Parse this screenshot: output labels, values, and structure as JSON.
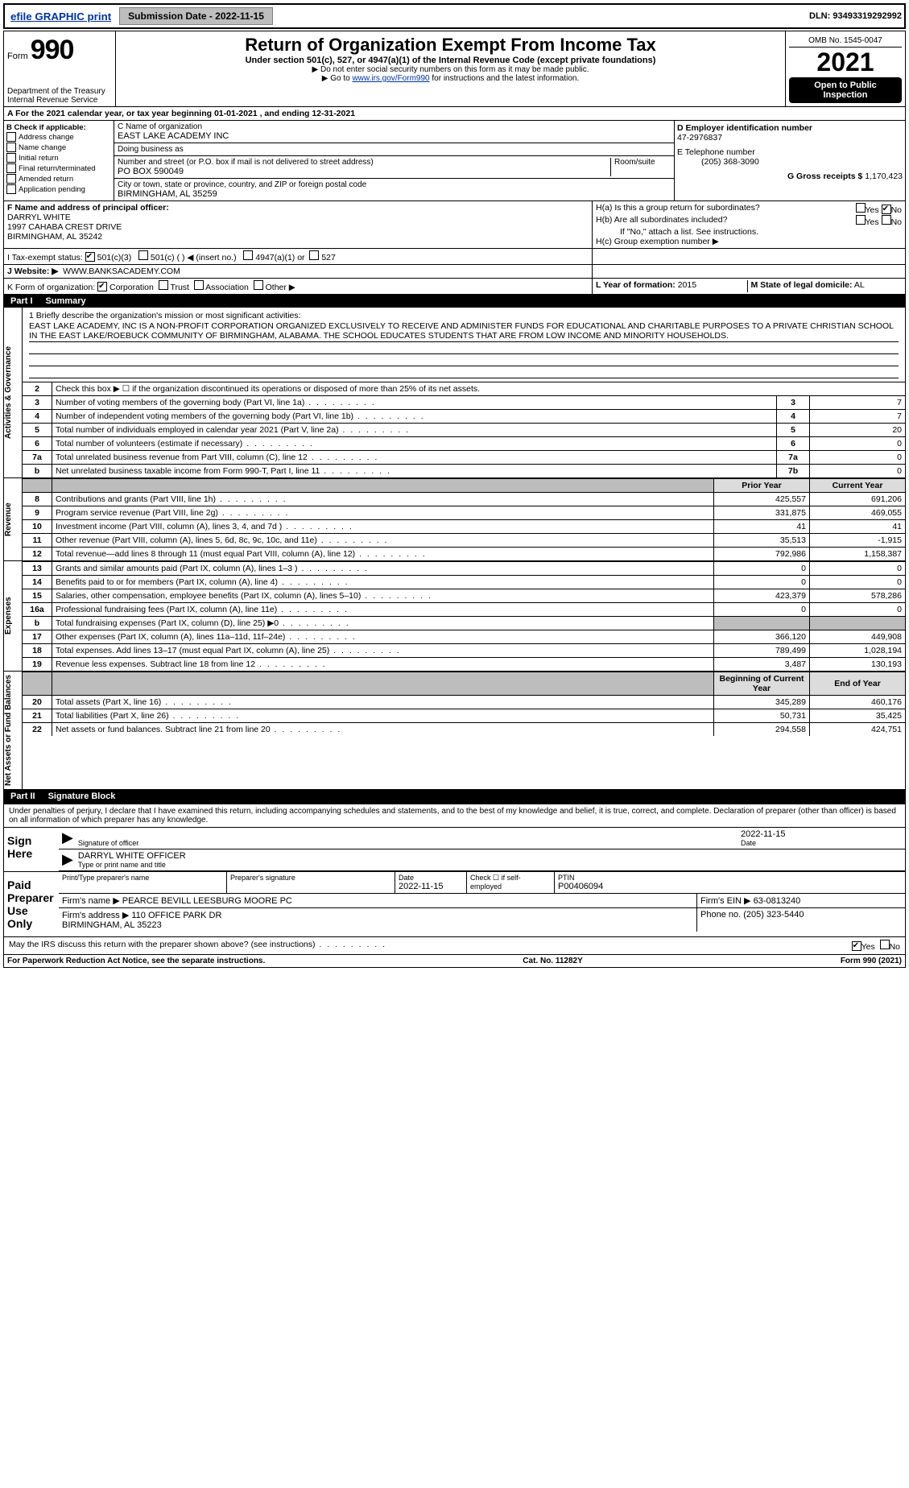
{
  "topbar": {
    "efile_label": "efile GRAPHIC print ",
    "submission_label": "Submission Date - 2022-11-15",
    "dln": "DLN: 93493319292992"
  },
  "header": {
    "form_label": "Form",
    "form_no": "990",
    "title": "Return of Organization Exempt From Income Tax",
    "subtitle": "Under section 501(c), 527, or 4947(a)(1) of the Internal Revenue Code (except private foundations)",
    "note1": "▶ Do not enter social security numbers on this form as it may be made public.",
    "note2_pre": "▶ Go to ",
    "note2_link": "www.irs.gov/Form990",
    "note2_post": " for instructions and the latest information.",
    "dept": "Department of the Treasury\nInternal Revenue Service",
    "omb": "OMB No. 1545-0047",
    "year": "2021",
    "badge": "Open to Public Inspection"
  },
  "a_row": "A For the 2021 calendar year, or tax year beginning 01-01-2021    , and ending 12-31-2021",
  "b": {
    "label": "B Check if applicable:",
    "opts": [
      "Address change",
      "Name change",
      "Initial return",
      "Final return/terminated",
      "Amended return",
      "Application pending"
    ]
  },
  "c": {
    "name_lbl": "C Name of organization",
    "name": "EAST LAKE ACADEMY INC",
    "dba_lbl": "Doing business as",
    "dba": "",
    "street_lbl": "Number and street (or P.O. box if mail is not delivered to street address)",
    "street": "PO BOX 590049",
    "room_lbl": "Room/suite",
    "city_lbl": "City or town, state or province, country, and ZIP or foreign postal code",
    "city": "BIRMINGHAM, AL  35259"
  },
  "d": {
    "lbl": "D Employer identification number",
    "val": "47-2976837"
  },
  "e": {
    "lbl": "E Telephone number",
    "val": "(205) 368-3090"
  },
  "g": {
    "lbl": "G Gross receipts $",
    "val": "1,170,423"
  },
  "f": {
    "lbl": "F  Name and address of principal officer:",
    "name": "DARRYL WHITE",
    "addr1": "1997 CAHABA CREST DRIVE",
    "addr2": "BIRMINGHAM, AL  35242"
  },
  "h": {
    "a": "H(a)  Is this a group return for subordinates?",
    "b": "H(b)  Are all subordinates included?",
    "note": "If \"No,\" attach a list. See instructions.",
    "c": "H(c)  Group exemption number ▶"
  },
  "i": {
    "lbl": "I    Tax-exempt status:",
    "opts": [
      "501(c)(3)",
      "501(c) (  ) ◀ (insert no.)",
      "4947(a)(1) or",
      "527"
    ]
  },
  "j": {
    "lbl": "J   Website: ▶",
    "val": "WWW.BANKSACADEMY.COM"
  },
  "k": {
    "lbl": "K Form of organization:",
    "opts": [
      "Corporation",
      "Trust",
      "Association",
      "Other ▶"
    ]
  },
  "l": {
    "lbl": "L Year of formation:",
    "val": "2015"
  },
  "m": {
    "lbl": "M State of legal domicile:",
    "val": "AL"
  },
  "part1_lbl": "Part I",
  "part1_title": "Summary",
  "mission": {
    "q": "1 Briefly describe the organization's mission or most significant activities:",
    "txt": "EAST LAKE ACADEMY, INC IS A NON-PROFIT CORPORATION ORGANIZED EXCLUSIVELY TO RECEIVE AND ADMINISTER FUNDS FOR EDUCATIONAL AND CHARITABLE PURPOSES TO A PRIVATE CHRISTIAN SCHOOL IN THE EAST LAKE/ROEBUCK COMMUNITY OF BIRMINGHAM, ALABAMA. THE SCHOOL EDUCATES STUDENTS THAT ARE FROM LOW INCOME AND MINORITY HOUSEHOLDS."
  },
  "gov_lines": [
    {
      "n": "2",
      "t": "Check this box ▶ ☐  if the organization discontinued its operations or disposed of more than 25% of its net assets."
    },
    {
      "n": "3",
      "t": "Number of voting members of the governing body (Part VI, line 1a)",
      "box": "3",
      "v": "7"
    },
    {
      "n": "4",
      "t": "Number of independent voting members of the governing body (Part VI, line 1b)",
      "box": "4",
      "v": "7"
    },
    {
      "n": "5",
      "t": "Total number of individuals employed in calendar year 2021 (Part V, line 2a)",
      "box": "5",
      "v": "20"
    },
    {
      "n": "6",
      "t": "Total number of volunteers (estimate if necessary)",
      "box": "6",
      "v": "0"
    },
    {
      "n": "7a",
      "t": "Total unrelated business revenue from Part VIII, column (C), line 12",
      "box": "7a",
      "v": "0"
    },
    {
      "n": "b",
      "t": "Net unrelated business taxable income from Form 990-T, Part I, line 11",
      "box": "7b",
      "v": "0"
    }
  ],
  "col_hdr": {
    "py": "Prior Year",
    "cy": "Current Year"
  },
  "rev_lines": [
    {
      "n": "8",
      "t": "Contributions and grants (Part VIII, line 1h)",
      "py": "425,557",
      "cy": "691,206"
    },
    {
      "n": "9",
      "t": "Program service revenue (Part VIII, line 2g)",
      "py": "331,875",
      "cy": "469,055"
    },
    {
      "n": "10",
      "t": "Investment income (Part VIII, column (A), lines 3, 4, and 7d )",
      "py": "41",
      "cy": "41"
    },
    {
      "n": "11",
      "t": "Other revenue (Part VIII, column (A), lines 5, 6d, 8c, 9c, 10c, and 11e)",
      "py": "35,513",
      "cy": "-1,915"
    },
    {
      "n": "12",
      "t": "Total revenue—add lines 8 through 11 (must equal Part VIII, column (A), line 12)",
      "py": "792,986",
      "cy": "1,158,387"
    }
  ],
  "exp_lines": [
    {
      "n": "13",
      "t": "Grants and similar amounts paid (Part IX, column (A), lines 1–3 )",
      "py": "0",
      "cy": "0"
    },
    {
      "n": "14",
      "t": "Benefits paid to or for members (Part IX, column (A), line 4)",
      "py": "0",
      "cy": "0"
    },
    {
      "n": "15",
      "t": "Salaries, other compensation, employee benefits (Part IX, column (A), lines 5–10)",
      "py": "423,379",
      "cy": "578,286"
    },
    {
      "n": "16a",
      "t": "Professional fundraising fees (Part IX, column (A), line 11e)",
      "py": "0",
      "cy": "0"
    },
    {
      "n": "b",
      "t": "Total fundraising expenses (Part IX, column (D), line 25) ▶0",
      "py": "",
      "cy": "",
      "shade": true
    },
    {
      "n": "17",
      "t": "Other expenses (Part IX, column (A), lines 11a–11d, 11f–24e)",
      "py": "366,120",
      "cy": "449,908"
    },
    {
      "n": "18",
      "t": "Total expenses. Add lines 13–17 (must equal Part IX, column (A), line 25)",
      "py": "789,499",
      "cy": "1,028,194"
    },
    {
      "n": "19",
      "t": "Revenue less expenses. Subtract line 18 from line 12",
      "py": "3,487",
      "cy": "130,193"
    }
  ],
  "na_hdr": {
    "py": "Beginning of Current Year",
    "cy": "End of Year"
  },
  "na_lines": [
    {
      "n": "20",
      "t": "Total assets (Part X, line 16)",
      "py": "345,289",
      "cy": "460,176"
    },
    {
      "n": "21",
      "t": "Total liabilities (Part X, line 26)",
      "py": "50,731",
      "cy": "35,425"
    },
    {
      "n": "22",
      "t": "Net assets or fund balances. Subtract line 21 from line 20",
      "py": "294,558",
      "cy": "424,751"
    }
  ],
  "part2_lbl": "Part II",
  "part2_title": "Signature Block",
  "perjury": "Under penalties of perjury, I declare that I have examined this return, including accompanying schedules and statements, and to the best of my knowledge and belief, it is true, correct, and complete. Declaration of preparer (other than officer) is based on all information of which preparer has any knowledge.",
  "sign": {
    "lbl": "Sign Here",
    "sig_lbl": "Signature of officer",
    "date": "2022-11-15",
    "date_lbl": "Date",
    "name": "DARRYL WHITE  OFFICER",
    "name_lbl": "Type or print name and title"
  },
  "paid": {
    "lbl": "Paid Preparer Use Only",
    "h1": "Print/Type preparer's name",
    "h2": "Preparer's signature",
    "h3": "Date",
    "h3v": "2022-11-15",
    "h4": "Check ☐ if self-employed",
    "h5": "PTIN",
    "h5v": "P00406094",
    "firm_lbl": "Firm's name     ▶",
    "firm": "PEARCE BEVILL LEESBURG MOORE PC",
    "ein_lbl": "Firm's EIN ▶",
    "ein": "63-0813240",
    "addr_lbl": "Firm's address ▶",
    "addr": "110 OFFICE PARK DR\nBIRMINGHAM, AL  35223",
    "phone_lbl": "Phone no.",
    "phone": "(205) 323-5440"
  },
  "discuss": "May the IRS discuss this return with the preparer shown above? (see instructions)",
  "footer": {
    "l": "For Paperwork Reduction Act Notice, see the separate instructions.",
    "c": "Cat. No. 11282Y",
    "r": "Form 990 (2021)"
  },
  "yes": "Yes",
  "no": "No",
  "vtabs": {
    "gov": "Activities & Governance",
    "rev": "Revenue",
    "exp": "Expenses",
    "na": "Net Assets or Fund Balances"
  }
}
